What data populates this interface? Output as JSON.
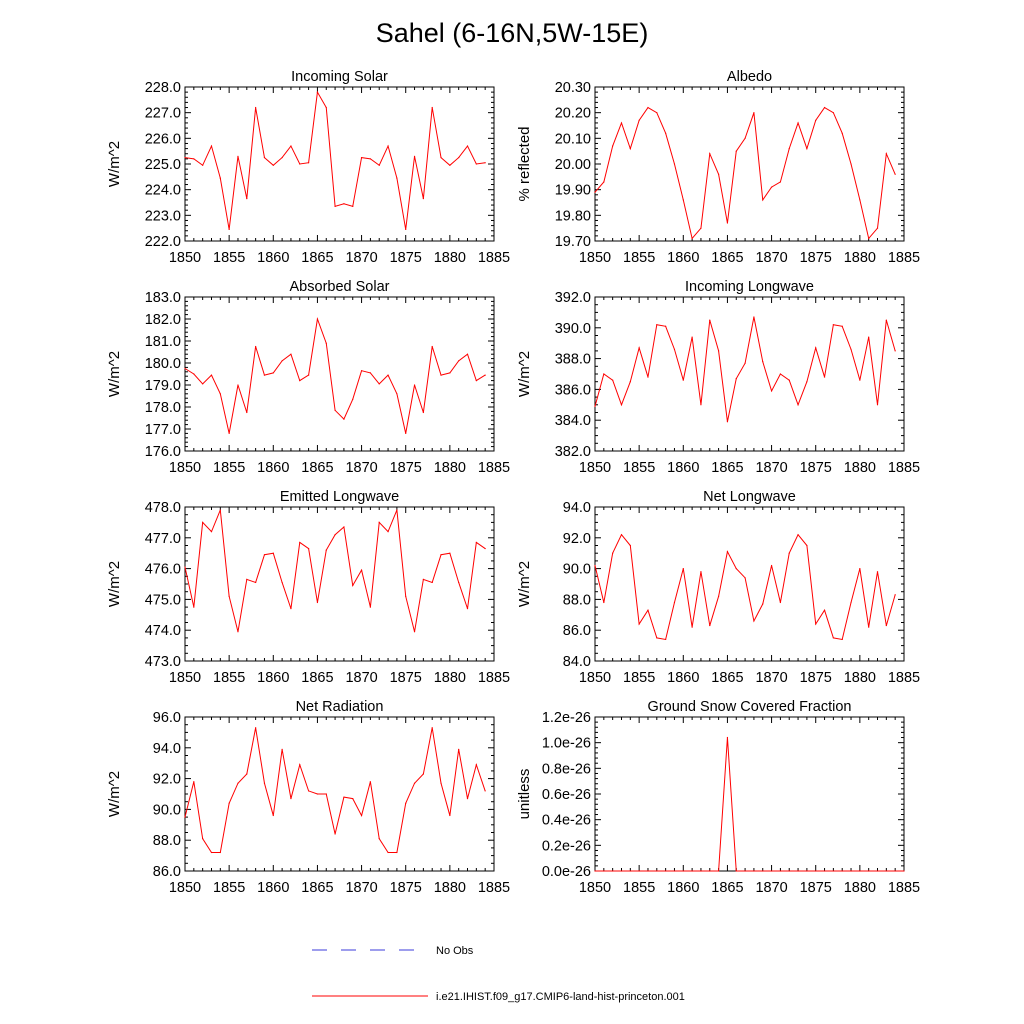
{
  "figure": {
    "title": "Sahel (6-16N,5W-15E)"
  },
  "legend": {
    "entries": [
      {
        "label": "No Obs",
        "style": "dashed",
        "color": "#3b3bdb"
      },
      {
        "label": "i.e21.IHIST.f09_g17.CMIP6-land-hist-princeton.001",
        "style": "solid",
        "color": "#ff0000"
      }
    ]
  },
  "chart_data": [
    {
      "type": "line",
      "title": "Incoming Solar",
      "ylabel": "W/m^2",
      "xlim": [
        1850,
        1885
      ],
      "ylim": [
        222.0,
        228.0
      ],
      "xticks": [
        "1850",
        "1855",
        "1860",
        "1865",
        "1870",
        "1875",
        "1880",
        "1885"
      ],
      "yticks": [
        "222.0",
        "223.0",
        "224.0",
        "225.0",
        "226.0",
        "227.0",
        "228.0"
      ],
      "x": [
        1850,
        1851,
        1852,
        1853,
        1854,
        1855,
        1856,
        1857,
        1858,
        1859,
        1860,
        1861,
        1862,
        1863,
        1864,
        1865,
        1866,
        1867,
        1868,
        1869,
        1870,
        1871,
        1872,
        1873,
        1874,
        1875,
        1876,
        1877,
        1878,
        1879,
        1880,
        1881,
        1882,
        1883,
        1884
      ],
      "series": [
        {
          "color": "#ff0000",
          "values": [
            225.25,
            225.2,
            224.95,
            225.7,
            224.45,
            222.45,
            225.3,
            223.65,
            227.2,
            225.25,
            224.95,
            225.25,
            225.7,
            225.0,
            225.05,
            227.8,
            227.2,
            223.35,
            223.45,
            223.35,
            225.25,
            225.2,
            224.95,
            225.7,
            224.45,
            222.45,
            225.3,
            223.65,
            227.2,
            225.25,
            224.95,
            225.25,
            225.7,
            225.0,
            225.05
          ]
        }
      ]
    },
    {
      "type": "line",
      "title": "Albedo",
      "ylabel": "% reflected",
      "xlim": [
        1850,
        1885
      ],
      "ylim": [
        19.7,
        20.3
      ],
      "xticks": [
        "1850",
        "1855",
        "1860",
        "1865",
        "1870",
        "1875",
        "1880",
        "1885"
      ],
      "yticks": [
        "19.70",
        "19.80",
        "19.90",
        "20.00",
        "20.10",
        "20.20",
        "20.30"
      ],
      "x": [
        1850,
        1851,
        1852,
        1853,
        1854,
        1855,
        1856,
        1857,
        1858,
        1859,
        1860,
        1861,
        1862,
        1863,
        1864,
        1865,
        1866,
        1867,
        1868,
        1869,
        1870,
        1871,
        1872,
        1873,
        1874,
        1875,
        1876,
        1877,
        1878,
        1879,
        1880,
        1881,
        1882,
        1883,
        1884
      ],
      "series": [
        {
          "color": "#ff0000",
          "values": [
            19.89,
            19.93,
            20.07,
            20.16,
            20.06,
            20.17,
            20.22,
            20.2,
            20.12,
            20.0,
            19.86,
            19.71,
            19.75,
            20.04,
            19.96,
            19.77,
            20.05,
            20.1,
            20.2,
            19.86,
            19.91,
            19.93,
            20.06,
            20.16,
            20.06,
            20.17,
            20.22,
            20.2,
            20.12,
            20.0,
            19.86,
            19.71,
            19.75,
            20.04,
            19.96
          ]
        }
      ]
    },
    {
      "type": "line",
      "title": "Absorbed Solar",
      "ylabel": "W/m^2",
      "xlim": [
        1850,
        1885
      ],
      "ylim": [
        176.0,
        183.0
      ],
      "xticks": [
        "1850",
        "1855",
        "1860",
        "1865",
        "1870",
        "1875",
        "1880",
        "1885"
      ],
      "yticks": [
        "176.0",
        "177.0",
        "178.0",
        "179.0",
        "180.0",
        "181.0",
        "182.0",
        "183.0"
      ],
      "x": [
        1850,
        1851,
        1852,
        1853,
        1854,
        1855,
        1856,
        1857,
        1858,
        1859,
        1860,
        1861,
        1862,
        1863,
        1864,
        1865,
        1866,
        1867,
        1868,
        1869,
        1870,
        1871,
        1872,
        1873,
        1874,
        1875,
        1876,
        1877,
        1878,
        1879,
        1880,
        1881,
        1882,
        1883,
        1884
      ],
      "series": [
        {
          "color": "#ff0000",
          "values": [
            179.75,
            179.5,
            179.05,
            179.45,
            178.6,
            176.8,
            179.0,
            177.75,
            180.75,
            179.45,
            179.55,
            180.1,
            180.4,
            179.2,
            179.45,
            182.0,
            180.9,
            177.85,
            177.45,
            178.35,
            179.65,
            179.55,
            179.05,
            179.45,
            178.6,
            176.8,
            179.0,
            177.75,
            180.75,
            179.45,
            179.55,
            180.1,
            180.4,
            179.2,
            179.45
          ]
        }
      ]
    },
    {
      "type": "line",
      "title": "Incoming Longwave",
      "ylabel": "W/m^2",
      "xlim": [
        1850,
        1885
      ],
      "ylim": [
        382.0,
        392.0
      ],
      "xticks": [
        "1850",
        "1855",
        "1860",
        "1865",
        "1870",
        "1875",
        "1880",
        "1885"
      ],
      "yticks": [
        "382.0",
        "384.0",
        "386.0",
        "388.0",
        "390.0",
        "392.0"
      ],
      "x": [
        1850,
        1851,
        1852,
        1853,
        1854,
        1855,
        1856,
        1857,
        1858,
        1859,
        1860,
        1861,
        1862,
        1863,
        1864,
        1865,
        1866,
        1867,
        1868,
        1869,
        1870,
        1871,
        1872,
        1873,
        1874,
        1875,
        1876,
        1877,
        1878,
        1879,
        1880,
        1881,
        1882,
        1883,
        1884
      ],
      "series": [
        {
          "color": "#ff0000",
          "values": [
            384.9,
            387.0,
            386.6,
            385.0,
            386.5,
            388.7,
            386.8,
            390.2,
            390.1,
            388.6,
            386.6,
            389.4,
            385.0,
            390.5,
            388.5,
            383.9,
            386.7,
            387.7,
            390.7,
            387.8,
            385.9,
            387.0,
            386.6,
            385.0,
            386.5,
            388.7,
            386.8,
            390.2,
            390.1,
            388.6,
            386.6,
            389.4,
            385.0,
            390.5,
            388.5
          ]
        }
      ]
    },
    {
      "type": "line",
      "title": "Emitted Longwave",
      "ylabel": "W/m^2",
      "xlim": [
        1850,
        1885
      ],
      "ylim": [
        473.0,
        478.0
      ],
      "xticks": [
        "1850",
        "1855",
        "1860",
        "1865",
        "1870",
        "1875",
        "1880",
        "1885"
      ],
      "yticks": [
        "473.0",
        "474.0",
        "475.0",
        "476.0",
        "477.0",
        "478.0"
      ],
      "x": [
        1850,
        1851,
        1852,
        1853,
        1854,
        1855,
        1856,
        1857,
        1858,
        1859,
        1860,
        1861,
        1862,
        1863,
        1864,
        1865,
        1866,
        1867,
        1868,
        1869,
        1870,
        1871,
        1872,
        1873,
        1874,
        1875,
        1876,
        1877,
        1878,
        1879,
        1880,
        1881,
        1882,
        1883,
        1884
      ],
      "series": [
        {
          "color": "#ff0000",
          "values": [
            476.05,
            474.75,
            477.5,
            477.2,
            477.9,
            475.1,
            473.95,
            475.65,
            475.55,
            476.45,
            476.5,
            475.55,
            474.7,
            476.85,
            476.65,
            474.9,
            476.6,
            477.1,
            477.35,
            475.45,
            475.95,
            474.75,
            477.5,
            477.2,
            477.9,
            475.1,
            473.95,
            475.65,
            475.55,
            476.45,
            476.5,
            475.55,
            474.7,
            476.85,
            476.65
          ]
        }
      ]
    },
    {
      "type": "line",
      "title": "Net Longwave",
      "ylabel": "W/m^2",
      "xlim": [
        1850,
        1885
      ],
      "ylim": [
        84.0,
        94.0
      ],
      "xticks": [
        "1850",
        "1855",
        "1860",
        "1865",
        "1870",
        "1875",
        "1880",
        "1885"
      ],
      "yticks": [
        "84.0",
        "86.0",
        "88.0",
        "90.0",
        "92.0",
        "94.0"
      ],
      "x": [
        1850,
        1851,
        1852,
        1853,
        1854,
        1855,
        1856,
        1857,
        1858,
        1859,
        1860,
        1861,
        1862,
        1863,
        1864,
        1865,
        1866,
        1867,
        1868,
        1869,
        1870,
        1871,
        1872,
        1873,
        1874,
        1875,
        1876,
        1877,
        1878,
        1879,
        1880,
        1881,
        1882,
        1883,
        1884
      ],
      "series": [
        {
          "color": "#ff0000",
          "values": [
            90.2,
            87.8,
            91.0,
            92.2,
            91.5,
            86.4,
            87.3,
            85.5,
            85.4,
            87.8,
            90.0,
            86.2,
            89.8,
            86.3,
            88.2,
            91.1,
            90.0,
            89.4,
            86.6,
            87.7,
            90.2,
            87.8,
            91.0,
            92.2,
            91.5,
            86.4,
            87.3,
            85.5,
            85.4,
            87.8,
            90.0,
            86.2,
            89.8,
            86.3,
            88.3
          ]
        }
      ]
    },
    {
      "type": "line",
      "title": "Net Radiation",
      "ylabel": "W/m^2",
      "xlim": [
        1850,
        1885
      ],
      "ylim": [
        86.0,
        96.0
      ],
      "xticks": [
        "1850",
        "1855",
        "1860",
        "1865",
        "1870",
        "1875",
        "1880",
        "1885"
      ],
      "yticks": [
        "86.0",
        "88.0",
        "90.0",
        "92.0",
        "94.0",
        "96.0"
      ],
      "x": [
        1850,
        1851,
        1852,
        1853,
        1854,
        1855,
        1856,
        1857,
        1858,
        1859,
        1860,
        1861,
        1862,
        1863,
        1864,
        1865,
        1866,
        1867,
        1868,
        1869,
        1870,
        1871,
        1872,
        1873,
        1874,
        1875,
        1876,
        1877,
        1878,
        1879,
        1880,
        1881,
        1882,
        1883,
        1884
      ],
      "series": [
        {
          "color": "#ff0000",
          "values": [
            89.5,
            91.8,
            88.1,
            87.2,
            87.2,
            90.4,
            91.7,
            92.3,
            95.3,
            91.7,
            89.6,
            93.9,
            90.7,
            92.9,
            91.2,
            91.0,
            91.0,
            88.4,
            90.8,
            90.7,
            89.6,
            91.8,
            88.1,
            87.2,
            87.2,
            90.4,
            91.7,
            92.3,
            95.3,
            91.7,
            89.6,
            93.9,
            90.7,
            92.9,
            91.2
          ]
        }
      ]
    },
    {
      "type": "line",
      "title": "Ground Snow Covered Fraction",
      "ylabel": "unitless",
      "xlim": [
        1850,
        1885
      ],
      "ylim": [
        0.0,
        1.2
      ],
      "xticks": [
        "1850",
        "1855",
        "1860",
        "1865",
        "1870",
        "1875",
        "1880",
        "1885"
      ],
      "yticks": [
        "0.0e-26",
        "0.2e-26",
        "0.4e-26",
        "0.6e-26",
        "0.8e-26",
        "1.0e-26",
        "1.2e-26"
      ],
      "x": [
        1850,
        1851,
        1852,
        1853,
        1854,
        1855,
        1856,
        1857,
        1858,
        1859,
        1860,
        1861,
        1862,
        1863,
        1864,
        1865,
        1866,
        1867,
        1868,
        1869,
        1870,
        1871,
        1872,
        1873,
        1874,
        1875,
        1876,
        1877,
        1878,
        1879,
        1880,
        1881,
        1882,
        1883,
        1884,
        1885
      ],
      "series": [
        {
          "color": "#ff0000",
          "values": [
            0,
            0,
            0,
            0,
            0,
            0,
            0,
            0,
            0,
            0,
            0,
            0,
            0,
            0,
            0,
            1.04,
            0,
            0,
            0,
            0,
            0,
            0,
            0,
            0,
            0,
            0,
            0,
            0,
            0,
            0,
            0,
            0,
            0,
            0,
            0,
            0
          ]
        }
      ]
    }
  ]
}
